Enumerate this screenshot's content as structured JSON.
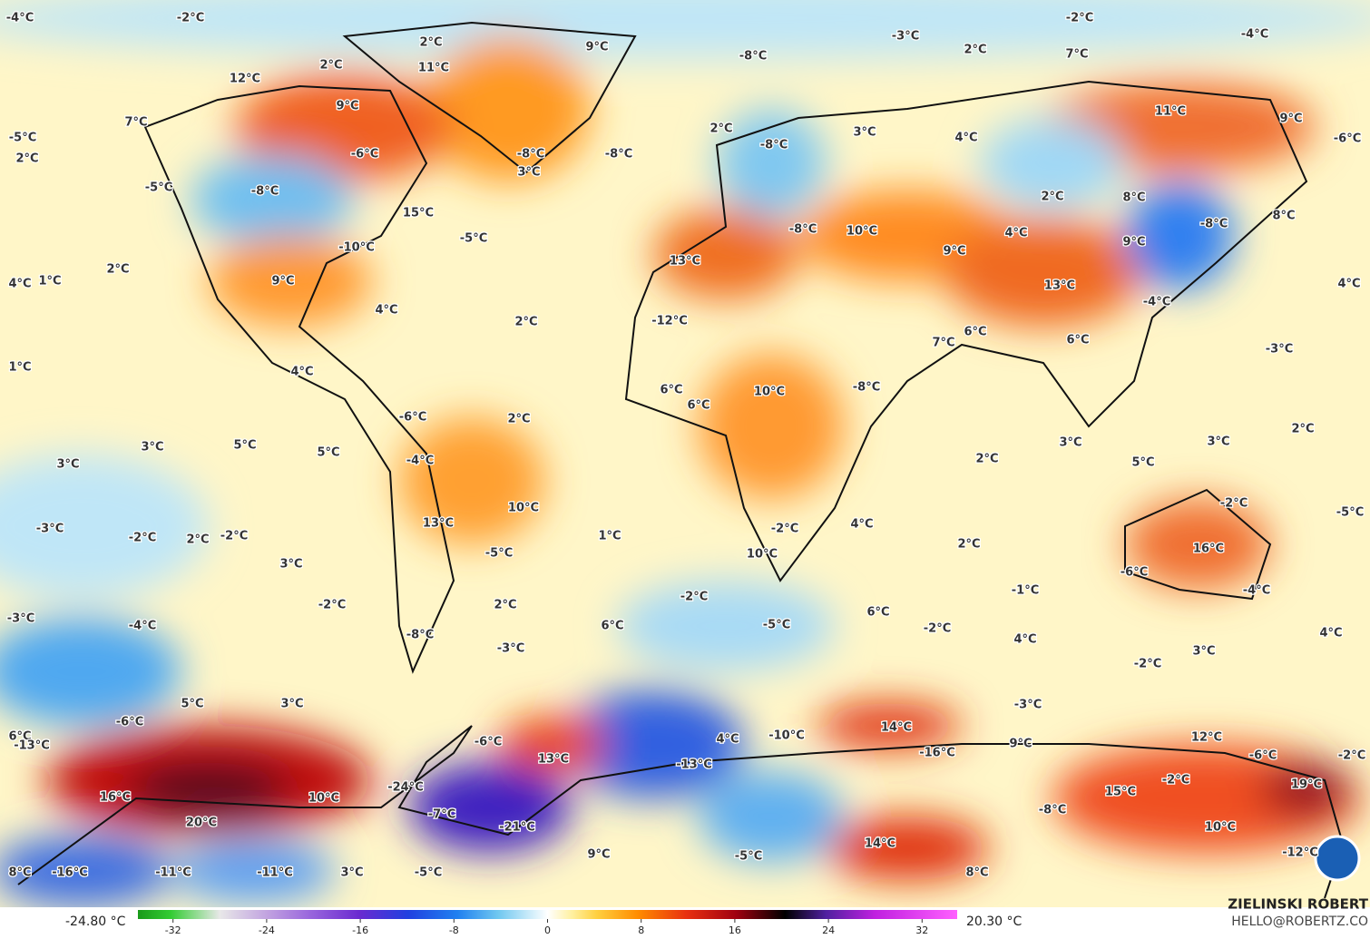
{
  "map": {
    "labels": [
      "-4°C",
      "-2°C",
      "2°C",
      "9°C",
      "-3°C",
      "-2°C",
      "-4°C",
      "2°C",
      "7°C",
      "-8°C",
      "2°C",
      "12°C",
      "11°C",
      "9°C",
      "7°C",
      "2°C",
      "3°C",
      "4°C",
      "11°C",
      "9°C",
      "-6°C",
      "-5°C",
      "2°C",
      "-6°C",
      "-8°C",
      "-8°C",
      "-8°C",
      "3°C",
      "-5°C",
      "-8°C",
      "15°C",
      "2°C",
      "8°C",
      "8°C",
      "-8°C",
      "10°C",
      "-10°C",
      "-5°C",
      "-8°C",
      "4°C",
      "9°C",
      "9°C",
      "2°C",
      "1°C",
      "4°C",
      "9°C",
      "13°C",
      "13°C",
      "4°C",
      "-4°C",
      "4°C",
      "-12°C",
      "2°C",
      "7°C",
      "6°C",
      "6°C",
      "-3°C",
      "1°C",
      "4°C",
      "-8°C",
      "10°C",
      "6°C",
      "6°C",
      "2°C",
      "2°C",
      "-6°C",
      "3°C",
      "5°C",
      "5°C",
      "3°C",
      "-4°C",
      "2°C",
      "3°C",
      "3°C",
      "5°C",
      "10°C",
      "-2°C",
      "-5°C",
      "13°C",
      "-3°C",
      "-2°C",
      "2°C",
      "-2°C",
      "1°C",
      "-2°C",
      "4°C",
      "-5°C",
      "10°C",
      "2°C",
      "16°C",
      "3°C",
      "-6°C",
      "-1°C",
      "-4°C",
      "-2°C",
      "2°C",
      "-2°C",
      "6°C",
      "-3°C",
      "-4°C",
      "6°C",
      "-5°C",
      "-2°C",
      "4°C",
      "4°C",
      "-8°C",
      "-3°C",
      "3°C",
      "-2°C",
      "5°C",
      "3°C",
      "-3°C",
      "-6°C",
      "6°C",
      "-13°C",
      "14°C",
      "4°C",
      "-10°C",
      "12°C",
      "9°C",
      "-6°C",
      "-16°C",
      "-6°C",
      "-2°C",
      "13°C",
      "-13°C",
      "-2°C",
      "16°C",
      "10°C",
      "-24°C",
      "15°C",
      "19°C",
      "-8°C",
      "-7°C",
      "20°C",
      "-21°C",
      "10°C",
      "14°C",
      "-12°C",
      "9°C",
      "-5°C",
      "8°C",
      "-16°C",
      "-11°C",
      "-11°C",
      "3°C",
      "-5°C",
      "8°C"
    ],
    "colorbar": {
      "range": [
        -35,
        35
      ],
      "ticks": [
        -32,
        -24,
        -16,
        -8,
        0,
        8,
        16,
        24,
        32
      ],
      "min_label": "-24.80 °C",
      "max_label": "20.30 °C"
    },
    "credit": {
      "name": "ZIELINSKI ROBERT",
      "email": "HELLO@ROBERTZ.CO"
    }
  }
}
